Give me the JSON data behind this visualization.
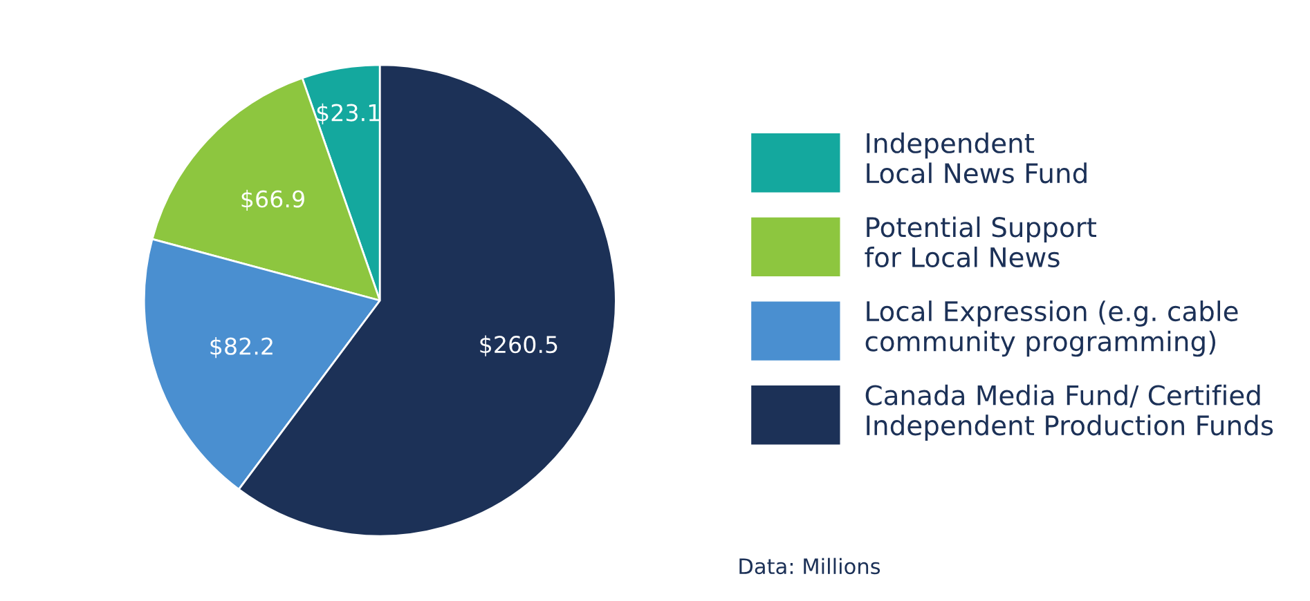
{
  "chart_data": {
    "type": "pie",
    "categories": [
      "Independent\nLocal News Fund",
      "Potential Support\nfor Local News",
      "Local Expression (e.g. cable\ncommunity programming)",
      "Canada Media Fund/ Certified\nIndependent Production Funds"
    ],
    "values": [
      23.1,
      66.9,
      82.2,
      260.5
    ],
    "value_labels": [
      "$23.1",
      "$66.9",
      "$82.2",
      "$260.5"
    ],
    "colors": [
      "#14a89e",
      "#8dc63f",
      "#4a8fd0",
      "#1c3157"
    ],
    "legend": "right",
    "annotations": [
      "Data: Millions"
    ]
  }
}
